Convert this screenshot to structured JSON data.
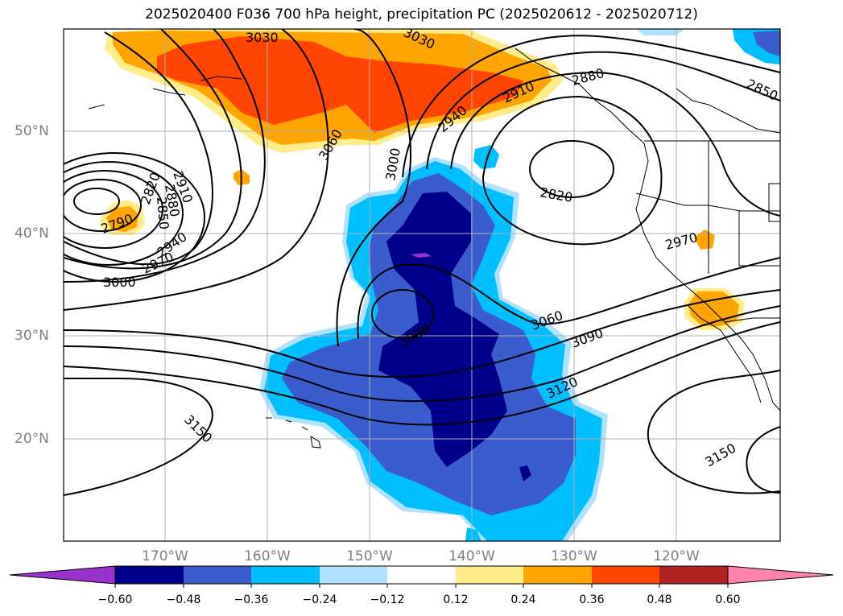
{
  "title": "2025020400 F036 700 hPa height, precipitation PC (2025020612 - 2025020712)",
  "lat_labels": [
    "50°N",
    "40°N",
    "30°N",
    "20°N"
  ],
  "lon_labels": [
    "170°W",
    "160°W",
    "150°W",
    "140°W",
    "130°W",
    "120°W"
  ],
  "contour_labels": [
    "3030",
    "3030",
    "2910",
    "2880",
    "2850",
    "3060",
    "2940",
    "3000",
    "2820",
    "2910",
    "2880",
    "2850",
    "2820",
    "2790",
    "2940",
    "2970",
    "3000",
    "2970",
    "3060",
    "3000",
    "3090",
    "3120",
    "3150",
    "3150"
  ],
  "colorbar": {
    "ticks": [
      "−0.60",
      "−0.48",
      "−0.36",
      "−0.24",
      "−0.12",
      "0.12",
      "0.24",
      "0.36",
      "0.48",
      "0.60"
    ],
    "colors": [
      "#9932cc",
      "#00008b",
      "#3a5ccc",
      "#00bfff",
      "#b0e2ff",
      "#ffffff",
      "#ffec8b",
      "#ffa500",
      "#ff4500",
      "#b22222",
      "#ff82ab"
    ]
  },
  "palette": {
    "strong_neg": "#00008b",
    "mid_neg": "#3a5ccc",
    "neg": "#00bfff",
    "weak_neg": "#b0e2ff",
    "weak_pos": "#ffec8b",
    "pos": "#ffa500",
    "mid_pos": "#ff4500",
    "extreme_neg": "#9932cc"
  }
}
